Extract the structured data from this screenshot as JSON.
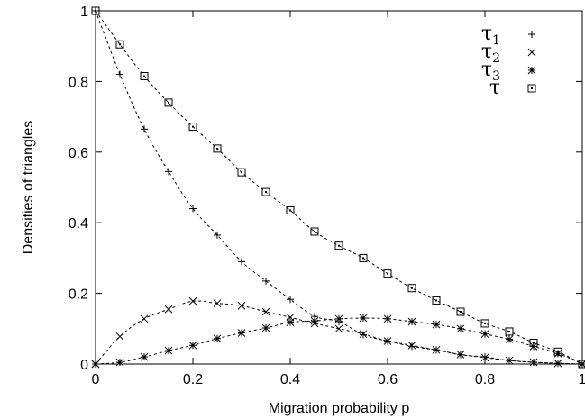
{
  "chart_data": {
    "type": "scatter",
    "xlabel": "Migration probability p",
    "ylabel": "Densities of triangles",
    "xlim": [
      0,
      1
    ],
    "ylim": [
      0,
      1
    ],
    "xticks": [
      "0",
      "0.2",
      "0.4",
      "0.6",
      "0.8",
      "1"
    ],
    "yticks": [
      "0",
      "0.2",
      "0.4",
      "0.6",
      "0.8",
      "1"
    ],
    "legend_position": "top-right",
    "x": [
      0,
      0.05,
      0.1,
      0.15,
      0.2,
      0.25,
      0.3,
      0.35,
      0.4,
      0.45,
      0.5,
      0.55,
      0.6,
      0.65,
      0.7,
      0.75,
      0.8,
      0.85,
      0.9,
      0.95,
      1.0
    ],
    "series": [
      {
        "name": "τ1",
        "base": "τ",
        "sub": "1",
        "marker": "plus",
        "values": [
          1.0,
          0.82,
          0.665,
          0.545,
          0.44,
          0.365,
          0.29,
          0.235,
          0.183,
          0.135,
          0.12,
          0.083,
          0.065,
          0.05,
          0.04,
          0.026,
          0.02,
          0.01,
          0.005,
          0.002,
          0.0
        ]
      },
      {
        "name": "τ2",
        "base": "τ",
        "sub": "2",
        "marker": "cross",
        "values": [
          0.0,
          0.078,
          0.128,
          0.155,
          0.178,
          0.172,
          0.165,
          0.148,
          0.132,
          0.115,
          0.1,
          0.085,
          0.065,
          0.053,
          0.04,
          0.027,
          0.018,
          0.01,
          0.005,
          0.002,
          0.0
        ]
      },
      {
        "name": "τ3",
        "base": "τ",
        "sub": "3",
        "marker": "star",
        "values": [
          0.0,
          0.005,
          0.02,
          0.038,
          0.053,
          0.072,
          0.088,
          0.102,
          0.118,
          0.122,
          0.128,
          0.13,
          0.128,
          0.12,
          0.112,
          0.1,
          0.085,
          0.07,
          0.05,
          0.03,
          0.0
        ]
      },
      {
        "name": "τ",
        "base": "τ",
        "sub": "",
        "marker": "boxdot",
        "values": [
          1.0,
          0.905,
          0.815,
          0.74,
          0.672,
          0.61,
          0.543,
          0.487,
          0.435,
          0.375,
          0.335,
          0.3,
          0.256,
          0.215,
          0.18,
          0.148,
          0.115,
          0.092,
          0.06,
          0.035,
          0.0
        ]
      }
    ]
  }
}
